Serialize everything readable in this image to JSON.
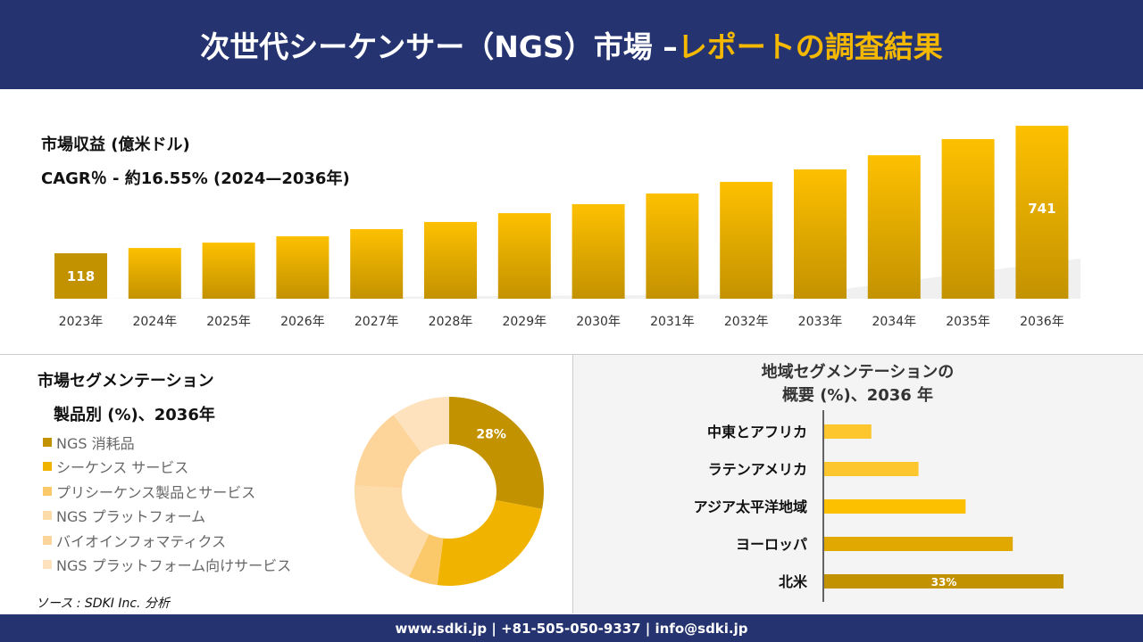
{
  "header": {
    "title_main": "次世代シーケンサー（NGS）市場 –",
    "title_highlight": "レポートの調査結果"
  },
  "colors": {
    "navy": "#253470",
    "accent": "#f5b800",
    "bar_dark": "#c39200",
    "bar_light": "#fdc000"
  },
  "chart_data": [
    {
      "type": "bar",
      "title": "市場収益 (億米ドル)",
      "subtitle": "CAGR％ - 約16.55% (2024—2036年)",
      "categories": [
        "2023年",
        "2024年",
        "2025年",
        "2026年",
        "2027年",
        "2028年",
        "2029年",
        "2030年",
        "2031年",
        "2032年",
        "2033年",
        "2034年",
        "2035年",
        "2036年"
      ],
      "values": [
        118,
        144,
        170,
        201,
        236,
        271,
        314,
        358,
        410,
        467,
        528,
        597,
        676,
        741
      ],
      "data_labels": {
        "0": "118",
        "13": "741"
      }
    },
    {
      "type": "pie",
      "title": "市場セグメンテーション",
      "subtitle": "製品別 (%)、2036年",
      "categories": [
        "NGS 消耗品",
        "シーケンス サービス",
        "プリシーケンス製品とサービス",
        "NGS プラットフォーム",
        "バイオインフォマティクス",
        "NGS プラットフォーム向けサービス"
      ],
      "values": [
        28,
        24,
        5,
        19,
        14,
        10
      ],
      "colors": [
        "#c39200",
        "#f0b400",
        "#fbc86a",
        "#fddcaa",
        "#fdd49a",
        "#fde2bd"
      ],
      "data_labels": {
        "0": "28%"
      }
    },
    {
      "type": "bar",
      "orientation": "horizontal",
      "title": "地域セグメンテーションの",
      "title_line2": "概要 (%)、2036 年",
      "categories": [
        "中東とアフリカ",
        "ラテンアメリカ",
        "アジア太平洋地域",
        "ヨーロッパ",
        "北米"
      ],
      "values": [
        6.5,
        13,
        19.5,
        26,
        33
      ],
      "colors": [
        "#fdc62e",
        "#fdc62e",
        "#fdc000",
        "#e0a800",
        "#c39200"
      ],
      "data_labels": {
        "4": "33%"
      }
    }
  ],
  "source": "ソース : SDKI Inc. 分析",
  "footer": {
    "contact": "www.sdki.jp | +81-505-050-9337 | info@sdki.jp"
  }
}
